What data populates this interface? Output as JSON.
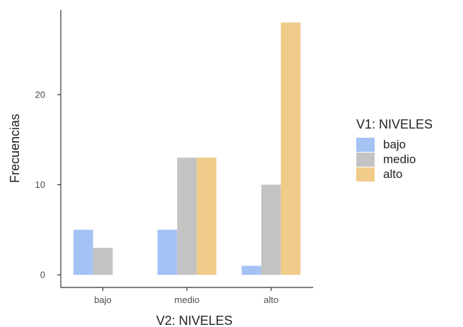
{
  "chart_data": {
    "type": "bar",
    "title": "",
    "xlabel": "V2: NIVELES",
    "ylabel": "Frecuencias",
    "categories": [
      "bajo",
      "medio",
      "alto"
    ],
    "series": [
      {
        "name": "bajo",
        "color": "#a4c2f4",
        "values": [
          5,
          5,
          1
        ]
      },
      {
        "name": "medio",
        "color": "#c3c3c3",
        "values": [
          3,
          13,
          10
        ]
      },
      {
        "name": "alto",
        "color": "#f1cb8a",
        "values": [
          0,
          13,
          28
        ]
      }
    ],
    "yticks": [
      0,
      10,
      20
    ],
    "ylim": [
      -1.4,
      29.4
    ],
    "legend_title": "V1: NIVELES",
    "legend_position": "right",
    "grid": false
  }
}
